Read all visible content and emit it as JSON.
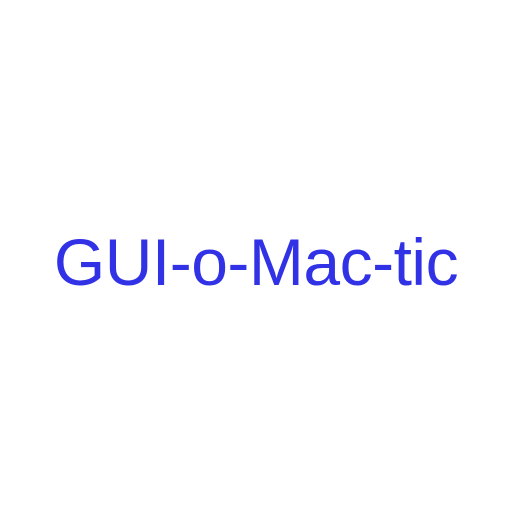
{
  "app": {
    "title": "GUI-o-Mac-tic",
    "title_color": "#3131e6",
    "background_color": "#ffffff"
  }
}
